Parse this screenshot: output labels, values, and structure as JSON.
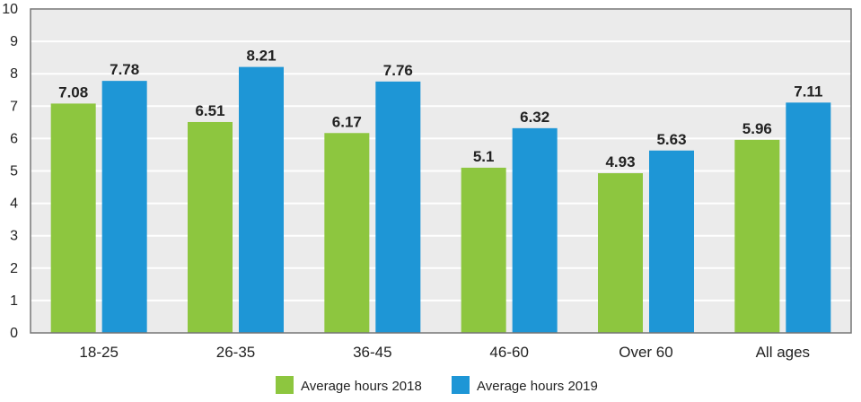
{
  "chart_data": {
    "type": "bar",
    "categories": [
      "18-25",
      "26-35",
      "36-45",
      "46-60",
      "Over 60",
      "All ages"
    ],
    "series": [
      {
        "name": "Average hours 2018",
        "values": [
          7.08,
          6.51,
          6.17,
          5.1,
          4.93,
          5.96
        ],
        "labels": [
          "7.08",
          "6.51",
          "6.17",
          "5.1",
          "4.93",
          "5.96"
        ],
        "color": "#8dc63f"
      },
      {
        "name": "Average hours 2019",
        "values": [
          7.78,
          8.21,
          7.76,
          6.32,
          5.63,
          7.11
        ],
        "labels": [
          "7.78",
          "8.21",
          "7.76",
          "6.32",
          "5.63",
          "7.11"
        ],
        "color": "#1e96d6"
      }
    ],
    "ylim": [
      0,
      10
    ],
    "yticks": [
      "0",
      "1",
      "2",
      "3",
      "4",
      "5",
      "6",
      "7",
      "8",
      "9",
      "10"
    ],
    "grid": true,
    "legend_position": "bottom",
    "plot_background": "#ebebeb",
    "grid_color": "#ffffff",
    "frame_color": "#777777"
  }
}
